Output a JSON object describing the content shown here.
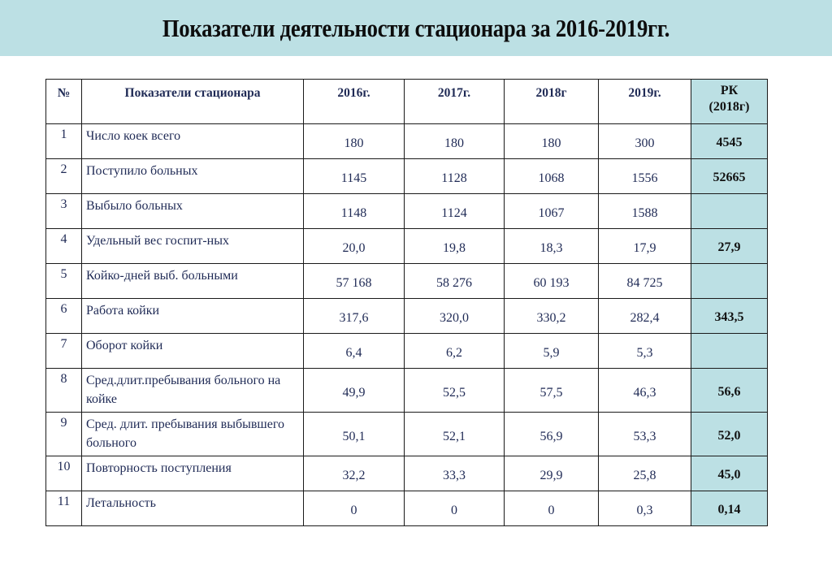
{
  "title": "Показатели деятельности стационара за 2016-2019гг.",
  "colors": {
    "accent_bg": "#bce0e4",
    "text": "#1f2a55",
    "border": "#1a1a1a"
  },
  "table": {
    "headers": [
      "№",
      "Показатели стационара",
      "2016г.",
      "2017г.",
      "2018г",
      "2019г.",
      "РК",
      "(2018г)"
    ],
    "rows": [
      {
        "n": "1",
        "name": "Число коек всего",
        "v2016": "180",
        "v2017": "180",
        "v2018": "180",
        "v2019": "300",
        "rk": "4545"
      },
      {
        "n": "2",
        "name": "Поступило больных",
        "v2016": "1145",
        "v2017": "1128",
        "v2018": "1068",
        "v2019": "1556",
        "rk": "52665"
      },
      {
        "n": "3",
        "name": "Выбыло больных",
        "v2016": "1148",
        "v2017": "1124",
        "v2018": "1067",
        "v2019": "1588",
        "rk": ""
      },
      {
        "n": "4",
        "name": "Удельный вес госпит-ных",
        "v2016": "20,0",
        "v2017": "19,8",
        "v2018": "18,3",
        "v2019": "17,9",
        "rk": "27,9"
      },
      {
        "n": "5",
        "name": "Койко-дней выб. больными",
        "v2016": "57 168",
        "v2017": "58 276",
        "v2018": "60 193",
        "v2019": "84 725",
        "rk": ""
      },
      {
        "n": "6",
        "name": "Работа койки",
        "v2016": "317,6",
        "v2017": "320,0",
        "v2018": "330,2",
        "v2019": "282,4",
        "rk": "343,5"
      },
      {
        "n": "7",
        "name": "Оборот койки",
        "v2016": "6,4",
        "v2017": "6,2",
        "v2018": "5,9",
        "v2019": "5,3",
        "rk": ""
      },
      {
        "n": "8",
        "name": "Сред.длит.пребывания больного на койке",
        "v2016": "49,9",
        "v2017": "52,5",
        "v2018": "57,5",
        "v2019": "46,3",
        "rk": "56,6"
      },
      {
        "n": "9",
        "name": "Сред. длит. пребывания выбывшего больного",
        "v2016": "50,1",
        "v2017": "52,1",
        "v2018": "56,9",
        "v2019": "53,3",
        "rk": "52,0"
      },
      {
        "n": "10",
        "name": "Повторность поступления",
        "v2016": "32,2",
        "v2017": "33,3",
        "v2018": "29,9",
        "v2019": "25,8",
        "rk": "45,0"
      },
      {
        "n": "11",
        "name": "Летальность",
        "v2016": "0",
        "v2017": "0",
        "v2018": "0",
        "v2019": "0,3",
        "rk": "0,14"
      }
    ]
  }
}
